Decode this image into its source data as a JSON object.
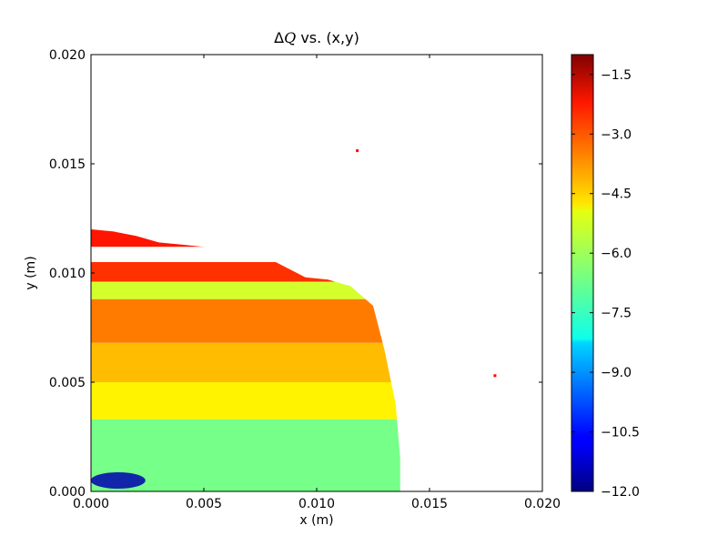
{
  "chart_data": {
    "type": "heatmap",
    "title": "ΔQ vs. (x,y)",
    "title_parts": {
      "symbol": "Δ",
      "var": "Q",
      "rest": " vs. (x,y)"
    },
    "xlabel": "x (m)",
    "ylabel": "y (m)",
    "xlim": [
      0.0,
      0.02
    ],
    "ylim": [
      0.0,
      0.02
    ],
    "xticks": [
      0.0,
      0.005,
      0.01,
      0.015,
      0.02
    ],
    "xtick_labels": [
      "0.000",
      "0.005",
      "0.010",
      "0.015",
      "0.020"
    ],
    "yticks": [
      0.0,
      0.005,
      0.01,
      0.015,
      0.02
    ],
    "ytick_labels": [
      "0.000",
      "0.005",
      "0.010",
      "0.015",
      "0.020"
    ],
    "grid": false,
    "colormap": "jet",
    "colorbar": {
      "range": [
        -12.0,
        -1.0
      ],
      "ticks": [
        -12.0,
        -10.5,
        -9.0,
        -7.5,
        -6.0,
        -4.5,
        -3.0,
        -1.5
      ],
      "tick_labels": [
        "−12.0",
        "−10.5",
        "−9.0",
        "−7.5",
        "−6.0",
        "−4.5",
        "−3.0",
        "−1.5"
      ]
    },
    "region_boundary": [
      [
        0.0,
        0.012
      ],
      [
        0.001,
        0.0119
      ],
      [
        0.002,
        0.0117
      ],
      [
        0.003,
        0.0114
      ],
      [
        0.004,
        0.0113
      ],
      [
        0.005,
        0.0112
      ],
      [
        0.006,
        0.0111
      ],
      [
        0.007,
        0.011
      ],
      [
        0.008,
        0.0106
      ],
      [
        0.0095,
        0.0098
      ],
      [
        0.0105,
        0.0097
      ],
      [
        0.0115,
        0.0094
      ],
      [
        0.0125,
        0.0085
      ],
      [
        0.013,
        0.0065
      ],
      [
        0.0135,
        0.004
      ],
      [
        0.0137,
        0.0015
      ],
      [
        0.0137,
        0.0
      ]
    ],
    "bands": [
      {
        "y": [
          0.0112,
          0.012
        ],
        "value": -2.6
      },
      {
        "y": [
          0.0096,
          0.0105
        ],
        "value": -2.9
      },
      {
        "y": [
          0.0088,
          0.0096
        ],
        "value": -5.6
      },
      {
        "y": [
          0.0068,
          0.0088
        ],
        "value": -3.7
      },
      {
        "y": [
          0.005,
          0.0068
        ],
        "value": -4.4
      },
      {
        "y": [
          0.0033,
          0.005
        ],
        "value": -5.0
      },
      {
        "y": [
          0.0,
          0.0033
        ],
        "value": -6.6
      }
    ],
    "minimum_spot": {
      "x": 0.0012,
      "y": 0.0005,
      "value": -11.5
    },
    "outliers": [
      {
        "x": 0.0118,
        "y": 0.0156,
        "value": -2.4
      },
      {
        "x": 0.0179,
        "y": 0.0053,
        "value": -2.4
      }
    ]
  }
}
